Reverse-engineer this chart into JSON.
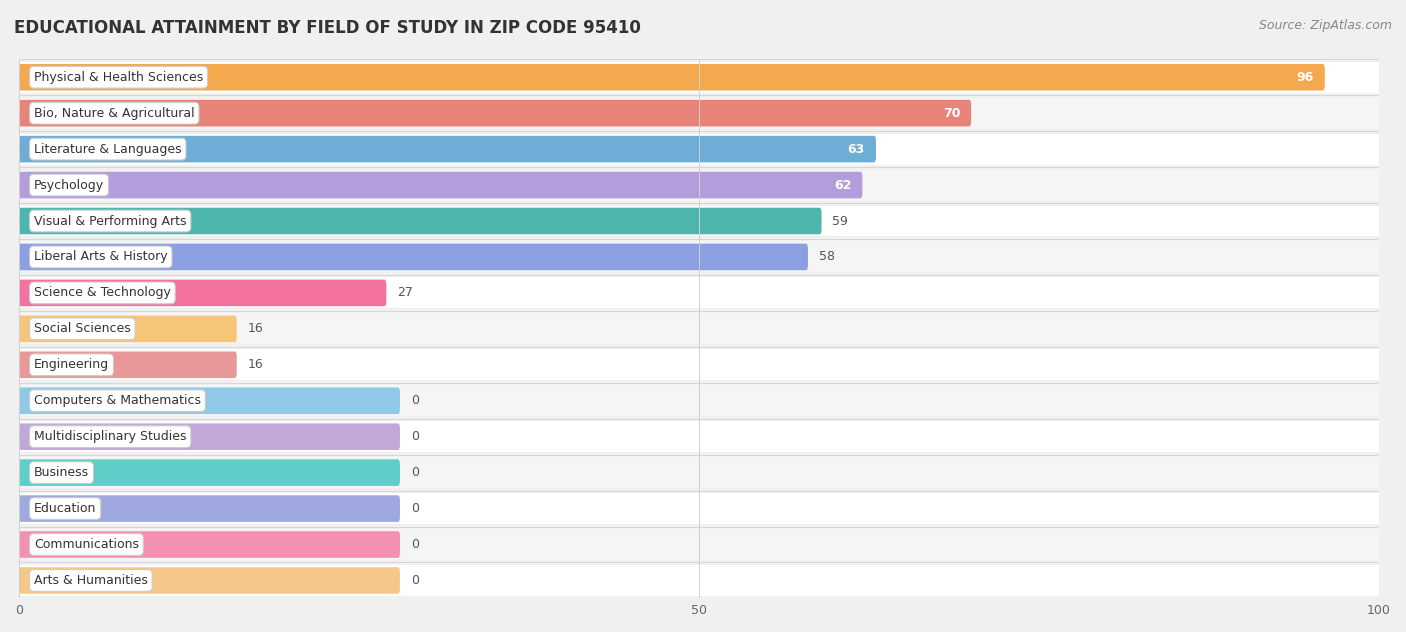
{
  "title": "EDUCATIONAL ATTAINMENT BY FIELD OF STUDY IN ZIP CODE 95410",
  "source": "Source: ZipAtlas.com",
  "categories": [
    "Physical & Health Sciences",
    "Bio, Nature & Agricultural",
    "Literature & Languages",
    "Psychology",
    "Visual & Performing Arts",
    "Liberal Arts & History",
    "Science & Technology",
    "Social Sciences",
    "Engineering",
    "Computers & Mathematics",
    "Multidisciplinary Studies",
    "Business",
    "Education",
    "Communications",
    "Arts & Humanities"
  ],
  "values": [
    96,
    70,
    63,
    62,
    59,
    58,
    27,
    16,
    16,
    0,
    0,
    0,
    0,
    0,
    0
  ],
  "bar_colors": [
    "#f5a94e",
    "#e8837a",
    "#6eaed6",
    "#b39ddb",
    "#4db6ac",
    "#8c9fe0",
    "#f472a0",
    "#f5c57a",
    "#e89898",
    "#90c8e8",
    "#c0a8d8",
    "#5ecfc8",
    "#a0a8e0",
    "#f490b0",
    "#f5c88a"
  ],
  "row_colors": [
    "#ffffff",
    "#f5f5f5"
  ],
  "xlim_max": 100,
  "background_color": "#f0f0f0",
  "title_fontsize": 12,
  "source_fontsize": 9,
  "bar_label_fontsize": 9,
  "value_label_fontsize": 9,
  "value_white_threshold": 62,
  "pill_bg": "#ffffff",
  "grid_color": "#d0d0d0"
}
